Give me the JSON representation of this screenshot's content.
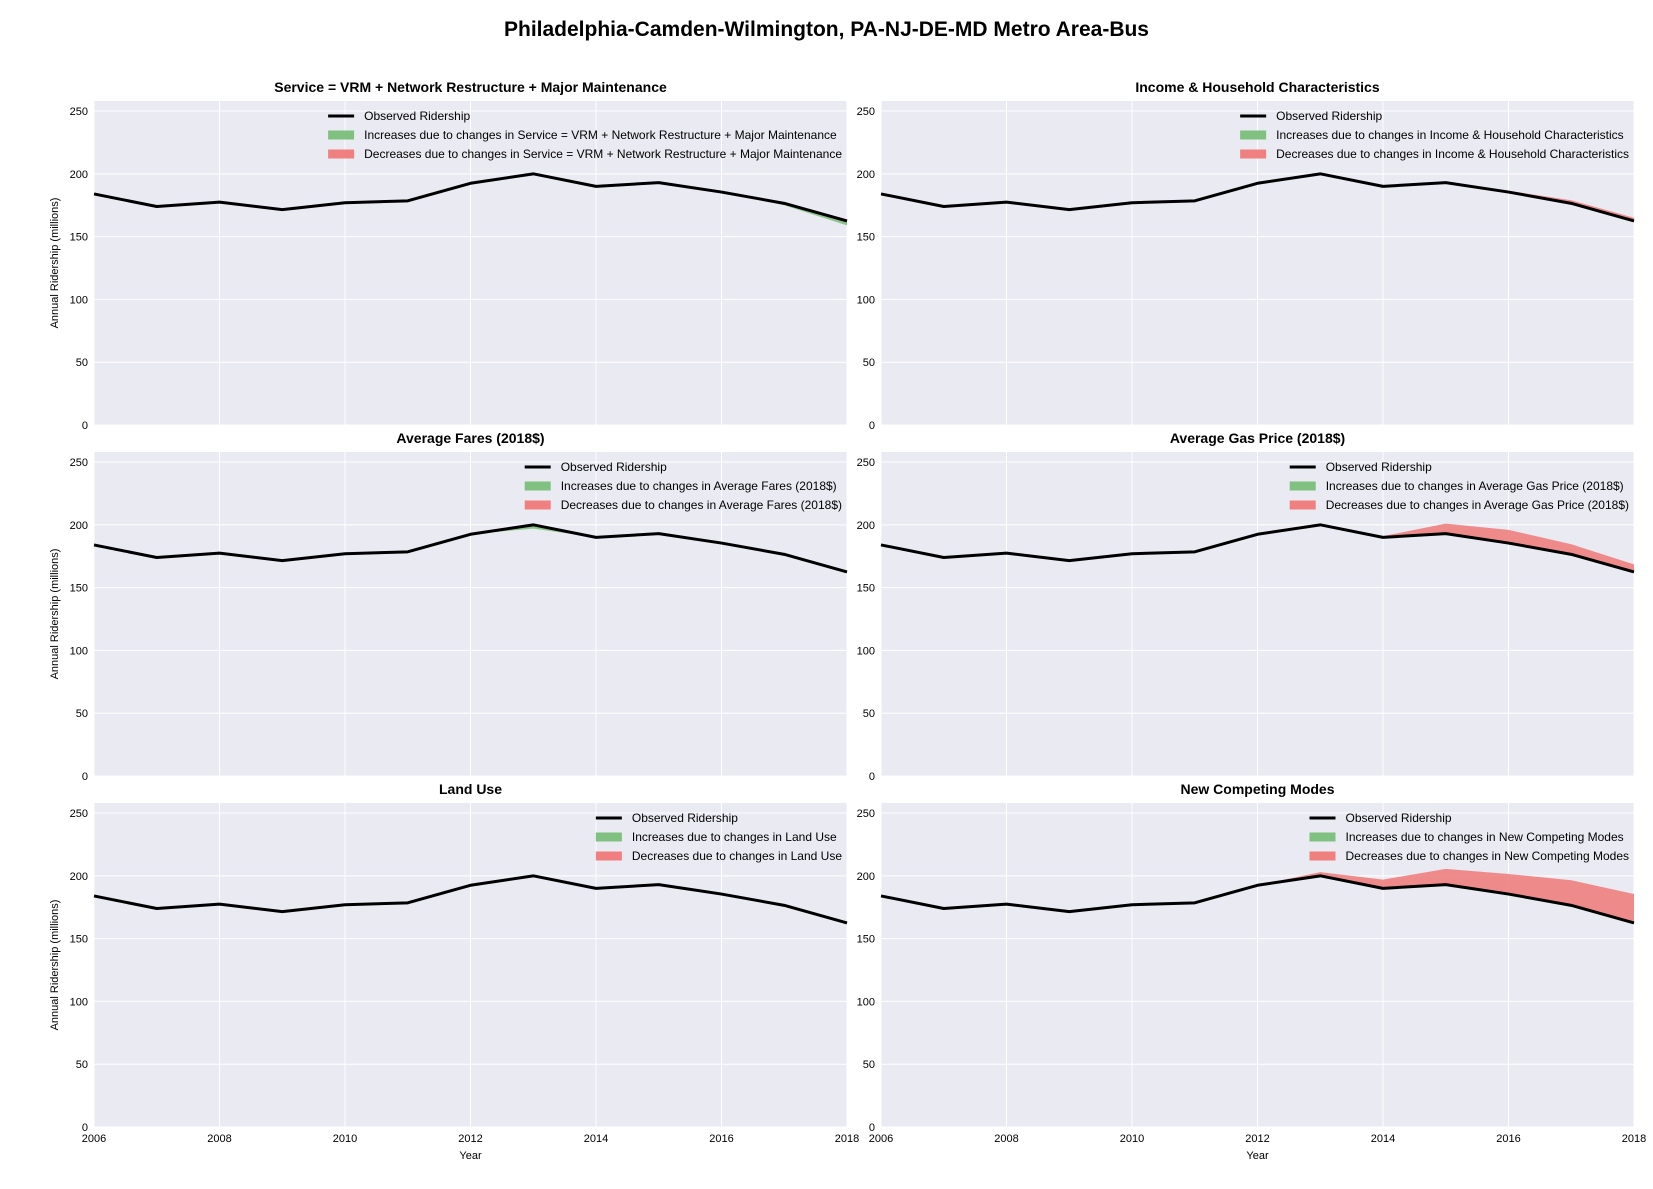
{
  "figure": {
    "title": "Philadelphia-Camden-Wilmington, PA-NJ-DE-MD Metro Area-Bus"
  },
  "chart_data": [
    {
      "type": "area",
      "title": "Service = VRM + Network Restructure + Major Maintenance",
      "xlabel": "",
      "ylabel": "Annual Ridership (millions)",
      "x": [
        2006,
        2007,
        2008,
        2009,
        2010,
        2011,
        2012,
        2013,
        2014,
        2015,
        2016,
        2017,
        2018
      ],
      "xlim": [
        2006,
        2018
      ],
      "ylim": [
        0,
        258
      ],
      "xticks": [
        2006,
        2008,
        2010,
        2012,
        2014,
        2016,
        2018
      ],
      "yticks": [
        0,
        50,
        100,
        150,
        200,
        250
      ],
      "grid": true,
      "legend_position": "top-right",
      "series": [
        {
          "name": "Observed Ridership",
          "values": [
            184,
            174,
            177.5,
            171.5,
            177,
            178.5,
            192.5,
            200,
            190,
            193,
            185.5,
            176.5,
            162.5
          ]
        },
        {
          "name": "Increases due to changes in Service = VRM + Network Restructure + Major Maintenance",
          "values": [
            184,
            174,
            177.5,
            171.5,
            177,
            178.5,
            192.5,
            200,
            190,
            193,
            185.5,
            175,
            159
          ]
        },
        {
          "name": "Decreases due to changes in Service = VRM + Network Restructure + Major Maintenance",
          "values": [
            184,
            174,
            177.5,
            171.5,
            177,
            178.5,
            192.5,
            200,
            190,
            193,
            185.5,
            176.5,
            162.5
          ]
        }
      ],
      "show_xticks": false,
      "show_xlabel": false
    },
    {
      "type": "area",
      "title": "Income & Household Characteristics",
      "xlabel": "",
      "ylabel": "",
      "x": [
        2006,
        2007,
        2008,
        2009,
        2010,
        2011,
        2012,
        2013,
        2014,
        2015,
        2016,
        2017,
        2018
      ],
      "xlim": [
        2006,
        2018
      ],
      "ylim": [
        0,
        258
      ],
      "xticks": [
        2006,
        2008,
        2010,
        2012,
        2014,
        2016,
        2018
      ],
      "yticks": [
        0,
        50,
        100,
        150,
        200,
        250
      ],
      "grid": true,
      "legend_position": "top-right",
      "series": [
        {
          "name": "Observed Ridership",
          "values": [
            184,
            174,
            177.5,
            171.5,
            177,
            178.5,
            192.5,
            200,
            190,
            193,
            185.5,
            176.5,
            162.5
          ]
        },
        {
          "name": "Increases due to changes in Income & Household Characteristics",
          "values": [
            184,
            174,
            177.5,
            171.5,
            177,
            178.5,
            192.5,
            200,
            190,
            193,
            185.5,
            176.5,
            162.5
          ]
        },
        {
          "name": "Decreases due to changes in Income & Household Characteristics",
          "values": [
            184,
            174,
            177.5,
            171.5,
            177,
            178.5,
            192.5,
            200,
            190,
            193,
            186.5,
            179,
            165
          ]
        }
      ],
      "show_xticks": false,
      "show_xlabel": false
    },
    {
      "type": "area",
      "title": "Average Fares (2018$)",
      "xlabel": "",
      "ylabel": "Annual Ridership (millions)",
      "x": [
        2006,
        2007,
        2008,
        2009,
        2010,
        2011,
        2012,
        2013,
        2014,
        2015,
        2016,
        2017,
        2018
      ],
      "xlim": [
        2006,
        2018
      ],
      "ylim": [
        0,
        258
      ],
      "xticks": [
        2006,
        2008,
        2010,
        2012,
        2014,
        2016,
        2018
      ],
      "yticks": [
        0,
        50,
        100,
        150,
        200,
        250
      ],
      "grid": true,
      "legend_position": "top-right",
      "series": [
        {
          "name": "Observed Ridership",
          "values": [
            184,
            174,
            177.5,
            171.5,
            177,
            178.5,
            192.5,
            200,
            190,
            193,
            185.5,
            176.5,
            162.5
          ]
        },
        {
          "name": "Increases due to changes in Average Fares (2018$)",
          "values": [
            184,
            174,
            177.5,
            171.5,
            177,
            178.5,
            192.5,
            197,
            190,
            193,
            185.5,
            176.5,
            162.5
          ]
        },
        {
          "name": "Decreases due to changes in Average Fares (2018$)",
          "values": [
            184,
            174,
            177.5,
            171.5,
            177,
            178.5,
            192.5,
            200,
            190,
            193,
            185.5,
            176.5,
            162.5
          ]
        }
      ],
      "show_xticks": false,
      "show_xlabel": false
    },
    {
      "type": "area",
      "title": "Average Gas Price (2018$)",
      "xlabel": "",
      "ylabel": "",
      "x": [
        2006,
        2007,
        2008,
        2009,
        2010,
        2011,
        2012,
        2013,
        2014,
        2015,
        2016,
        2017,
        2018
      ],
      "xlim": [
        2006,
        2018
      ],
      "ylim": [
        0,
        258
      ],
      "xticks": [
        2006,
        2008,
        2010,
        2012,
        2014,
        2016,
        2018
      ],
      "yticks": [
        0,
        50,
        100,
        150,
        200,
        250
      ],
      "grid": true,
      "legend_position": "top-right",
      "series": [
        {
          "name": "Observed Ridership",
          "values": [
            184,
            174,
            177.5,
            171.5,
            177,
            178.5,
            192.5,
            200,
            190,
            193,
            185.5,
            176.5,
            162.5
          ]
        },
        {
          "name": "Increases due to changes in Average Gas Price (2018$)",
          "values": [
            184,
            174,
            177.5,
            171.5,
            177,
            178.5,
            192.5,
            200,
            190,
            193,
            185.5,
            176.5,
            162.5
          ]
        },
        {
          "name": "Decreases due to changes in Average Gas Price (2018$)",
          "values": [
            184,
            174,
            177.5,
            171.5,
            177,
            178.5,
            192.5,
            200,
            191,
            201,
            196,
            184.5,
            168.5
          ]
        }
      ],
      "show_xticks": false,
      "show_xlabel": false
    },
    {
      "type": "area",
      "title": "Land Use",
      "xlabel": "Year",
      "ylabel": "Annual Ridership (millions)",
      "x": [
        2006,
        2007,
        2008,
        2009,
        2010,
        2011,
        2012,
        2013,
        2014,
        2015,
        2016,
        2017,
        2018
      ],
      "xlim": [
        2006,
        2018
      ],
      "ylim": [
        0,
        258
      ],
      "xticks": [
        2006,
        2008,
        2010,
        2012,
        2014,
        2016,
        2018
      ],
      "yticks": [
        0,
        50,
        100,
        150,
        200,
        250
      ],
      "grid": true,
      "legend_position": "top-right",
      "series": [
        {
          "name": "Observed Ridership",
          "values": [
            184,
            174,
            177.5,
            171.5,
            177,
            178.5,
            192.5,
            200,
            190,
            193,
            185.5,
            176.5,
            162.5
          ]
        },
        {
          "name": "Increases due to changes in Land Use",
          "values": [
            184,
            174,
            177.5,
            171.5,
            177,
            178.5,
            192.5,
            200,
            190,
            193,
            185.5,
            176.5,
            162.5
          ]
        },
        {
          "name": "Decreases due to changes in Land Use",
          "values": [
            184,
            174,
            177.5,
            171.5,
            177,
            178.5,
            192.5,
            200,
            190,
            193,
            185.5,
            176.5,
            162.5
          ]
        }
      ],
      "show_xticks": true,
      "show_xlabel": true
    },
    {
      "type": "area",
      "title": "New Competing Modes",
      "xlabel": "Year",
      "ylabel": "",
      "x": [
        2006,
        2007,
        2008,
        2009,
        2010,
        2011,
        2012,
        2013,
        2014,
        2015,
        2016,
        2017,
        2018
      ],
      "xlim": [
        2006,
        2018
      ],
      "ylim": [
        0,
        258
      ],
      "xticks": [
        2006,
        2008,
        2010,
        2012,
        2014,
        2016,
        2018
      ],
      "yticks": [
        0,
        50,
        100,
        150,
        200,
        250
      ],
      "grid": true,
      "legend_position": "top-right",
      "series": [
        {
          "name": "Observed Ridership",
          "values": [
            184,
            174,
            177.5,
            171.5,
            177,
            178.5,
            192.5,
            200,
            190,
            193,
            185.5,
            176.5,
            162.5
          ]
        },
        {
          "name": "Increases due to changes in New Competing Modes",
          "values": [
            184,
            174,
            177.5,
            171.5,
            177,
            178.5,
            192.5,
            200,
            190,
            193,
            185.5,
            176.5,
            162.5
          ]
        },
        {
          "name": "Decreases due to changes in New Competing Modes",
          "values": [
            184,
            174,
            177.5,
            171.5,
            177,
            178.5,
            192.5,
            203,
            197,
            205.5,
            201.5,
            196.5,
            185.5
          ]
        }
      ],
      "show_xticks": true,
      "show_xlabel": true
    }
  ],
  "colors": {
    "panel_background": "#eaeaf2",
    "grid": "#ffffff",
    "observed_line": "#000000",
    "increase_fill": "#80c080",
    "decrease_fill": "#f08080"
  }
}
